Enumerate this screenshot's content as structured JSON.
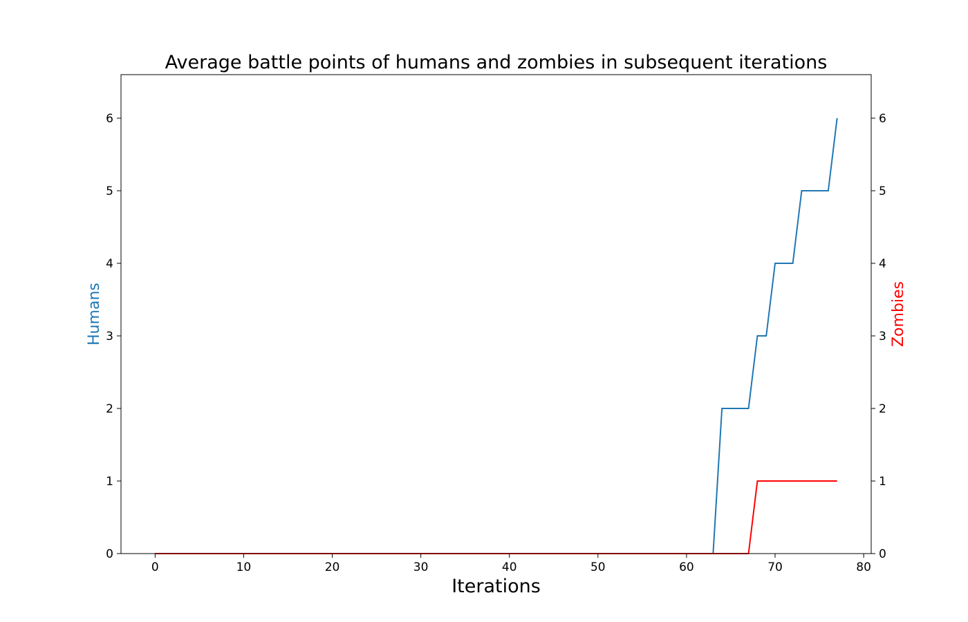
{
  "chart_data": {
    "type": "line",
    "title": "Average battle points of humans and zombies in subsequent iterations",
    "xlabel": "Iterations",
    "ylabel_left": "Humans",
    "ylabel_right": "Zombies",
    "xlim": [
      -3.85,
      80.85
    ],
    "ylim": [
      0,
      6.6
    ],
    "x_ticks": [
      0,
      10,
      20,
      30,
      40,
      50,
      60,
      70,
      80
    ],
    "y_ticks_left": [
      0,
      1,
      2,
      3,
      4,
      5,
      6
    ],
    "y_ticks_right": [
      0,
      1,
      2,
      3,
      4,
      5,
      6
    ],
    "grid": false,
    "colors": {
      "humans": "#1f77b4",
      "zombies": "#ff0000",
      "axes": "#000000"
    },
    "series": [
      {
        "name": "Humans",
        "axis": "left",
        "color": "#1f77b4",
        "points": [
          [
            0,
            0
          ],
          [
            63,
            0
          ],
          [
            64,
            2
          ],
          [
            67,
            2
          ],
          [
            68,
            3
          ],
          [
            69,
            3
          ],
          [
            70,
            4
          ],
          [
            72,
            4
          ],
          [
            73,
            5
          ],
          [
            76,
            5
          ],
          [
            77,
            6
          ]
        ]
      },
      {
        "name": "Zombies",
        "axis": "right",
        "color": "#ff0000",
        "points": [
          [
            0,
            0
          ],
          [
            67,
            0
          ],
          [
            68,
            1
          ],
          [
            77,
            1
          ]
        ]
      }
    ]
  }
}
